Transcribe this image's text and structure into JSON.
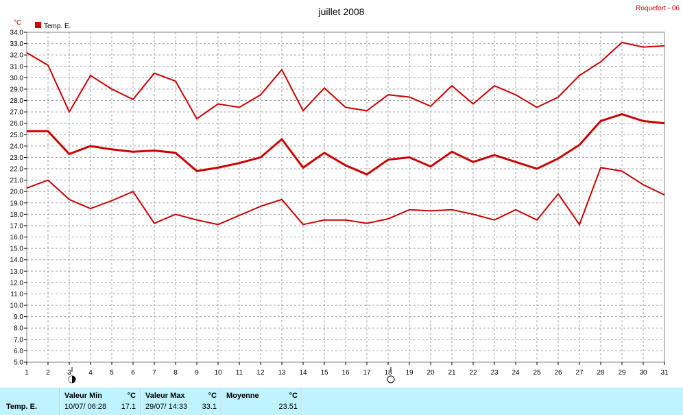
{
  "chart_data": {
    "type": "line",
    "title": "juillet 2008",
    "station": "Roquefort - 06",
    "ylabel": "°C",
    "legend": {
      "label": "Temp. E.",
      "color": "#cc0000",
      "placement": "top-left"
    },
    "x": [
      1,
      2,
      3,
      4,
      5,
      6,
      7,
      8,
      9,
      10,
      11,
      12,
      13,
      14,
      15,
      16,
      17,
      18,
      19,
      20,
      21,
      22,
      23,
      24,
      25,
      26,
      27,
      28,
      29,
      30,
      31
    ],
    "xlim": [
      1,
      31
    ],
    "ylim": [
      5,
      34
    ],
    "ytick_step": 1,
    "grid": true,
    "series": [
      {
        "role": "max",
        "values": [
          32.2,
          31.1,
          27.0,
          30.2,
          29.0,
          28.1,
          30.4,
          29.7,
          26.4,
          27.7,
          27.4,
          28.5,
          30.7,
          27.1,
          29.1,
          27.4,
          27.1,
          28.5,
          28.3,
          27.5,
          29.3,
          27.7,
          29.3,
          28.5,
          27.4,
          28.3,
          30.2,
          31.4,
          33.1,
          32.7,
          32.8
        ]
      },
      {
        "role": "mean",
        "values": [
          25.3,
          25.3,
          23.3,
          24.0,
          23.7,
          23.5,
          23.6,
          23.4,
          21.8,
          22.1,
          22.5,
          23.0,
          24.6,
          22.1,
          23.4,
          22.3,
          21.5,
          22.8,
          23.0,
          22.2,
          23.5,
          22.6,
          23.2,
          22.6,
          22.0,
          22.9,
          24.1,
          26.2,
          26.8,
          26.2,
          26.0
        ]
      },
      {
        "role": "min",
        "values": [
          20.3,
          21.0,
          19.3,
          18.5,
          19.2,
          20.0,
          17.2,
          18.0,
          17.5,
          17.1,
          17.9,
          18.7,
          19.3,
          17.1,
          17.5,
          17.5,
          17.2,
          17.6,
          18.4,
          18.3,
          18.4,
          18.0,
          17.5,
          18.4,
          17.5,
          19.8,
          17.1,
          22.1,
          21.8,
          20.6,
          19.7
        ]
      }
    ],
    "moon_phases": [
      {
        "day": 3,
        "phase": "new-moon"
      },
      {
        "day": 18,
        "phase": "full-moon"
      }
    ]
  },
  "footer": {
    "row_label": "Temp. E.",
    "min": {
      "header": "Valeur Min",
      "unit": "°C",
      "datetime": "10/07/ 06:28",
      "value": "17.1"
    },
    "max": {
      "header": "Valeur Max",
      "unit": "°C",
      "datetime": "29/07/ 14:33",
      "value": "33.1"
    },
    "mean": {
      "header": "Moyenne",
      "unit": "°C",
      "value": "23.51"
    }
  }
}
